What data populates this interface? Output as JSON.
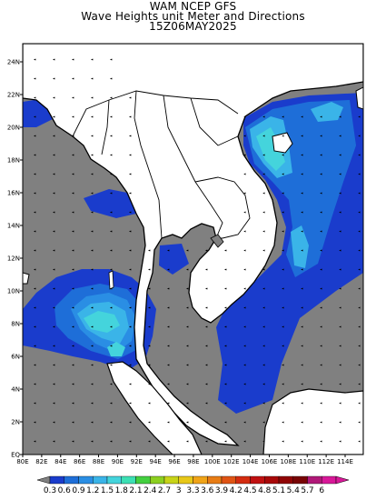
{
  "header": {
    "line1": "WAM NCEP GFS",
    "line2": "Wave Heights unit Meter and Directions",
    "line3": "15Z06MAY2025"
  },
  "map": {
    "lat_ticks": [
      "24N",
      "22N",
      "20N",
      "18N",
      "16N",
      "14N",
      "12N",
      "10N",
      "8N",
      "6N",
      "4N",
      "2N",
      "EQ"
    ],
    "lon_ticks": [
      "80E",
      "82E",
      "84E",
      "86E",
      "88E",
      "90E",
      "92E",
      "94E",
      "96E",
      "98E",
      "100E",
      "102E",
      "104E",
      "106E",
      "108E",
      "110E",
      "112E",
      "114E"
    ],
    "land_color": "#ffffff",
    "nodata_color": "#808080",
    "arrow_color": "#000000"
  },
  "colorbar": {
    "labels": [
      "0.3",
      "0.6",
      "0.9",
      "1.2",
      "1.5",
      "1.8",
      "2.1",
      "2.4",
      "2.7",
      "3",
      "3.3",
      "3.6",
      "3.9",
      "4.2",
      "4.5",
      "4.8",
      "5.1",
      "5.4",
      "5.7",
      "6"
    ],
    "colors": [
      "#1a3ccc",
      "#1e6ed8",
      "#2a8ee4",
      "#3ab4e8",
      "#44d4dc",
      "#3ce0b4",
      "#44d040",
      "#8cd020",
      "#c8d418",
      "#e8c818",
      "#f0a418",
      "#e87c14",
      "#e05414",
      "#d42c10",
      "#c01010",
      "#a80808",
      "#900404",
      "#780404",
      "#b01878",
      "#d81898"
    ]
  }
}
